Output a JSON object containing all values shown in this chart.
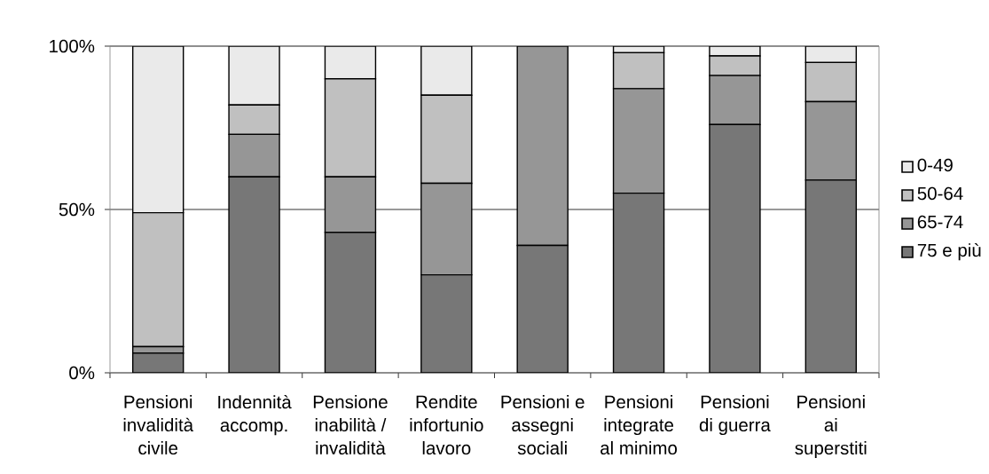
{
  "chart_data": {
    "type": "bar",
    "stacked": true,
    "categories": [
      "Pensioni invalidità civile",
      "Indennità accomp.",
      "Pensione inabilità / invalidità",
      "Rendite infortunio lavoro",
      "Pensioni e assegni sociali",
      "Pensioni integrate al minimo",
      "Pensioni di guerra",
      "Pensioni ai superstiti"
    ],
    "series": [
      {
        "name": "75 e più",
        "color": "#777777",
        "values": [
          6,
          60,
          43,
          30,
          39,
          55,
          76,
          59
        ]
      },
      {
        "name": "65-74",
        "color": "#969696",
        "values": [
          2,
          13,
          17,
          28,
          61,
          32,
          15,
          24
        ]
      },
      {
        "name": "50-64",
        "color": "#c0c0c0",
        "values": [
          41,
          9,
          30,
          27,
          0,
          11,
          6,
          12
        ]
      },
      {
        "name": "0-49",
        "color": "#eaeaea",
        "values": [
          51,
          18,
          10,
          15,
          0,
          2,
          3,
          5
        ]
      }
    ],
    "ylim": [
      0,
      100
    ],
    "yticks": [
      {
        "value": 0,
        "label": "0%"
      },
      {
        "value": 50,
        "label": "50%"
      },
      {
        "value": 100,
        "label": "100%"
      }
    ],
    "grid": "y",
    "legend": "right"
  }
}
